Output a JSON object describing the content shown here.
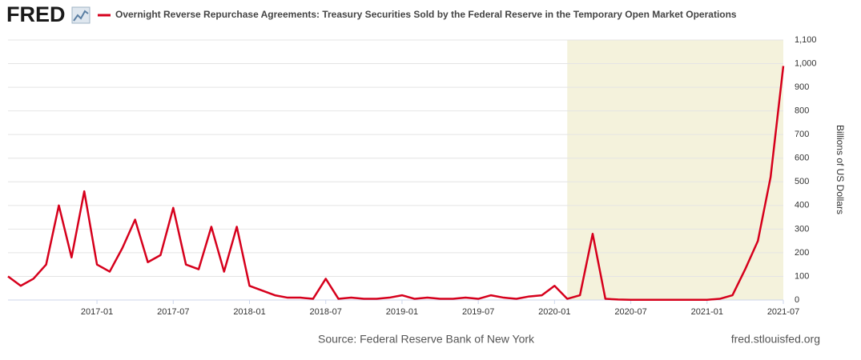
{
  "logo": "FRED",
  "chart_data": {
    "type": "line",
    "series": [
      {
        "name": "Overnight Reverse Repurchase Agreements: Treasury Securities Sold by the Federal Reserve in the Temporary Open Market Operations",
        "color": "#d6001c",
        "values": [
          100,
          60,
          90,
          150,
          400,
          180,
          460,
          150,
          120,
          220,
          340,
          160,
          190,
          390,
          150,
          130,
          310,
          120,
          310,
          60,
          40,
          20,
          10,
          10,
          5,
          90,
          5,
          10,
          5,
          5,
          10,
          20,
          5,
          10,
          5,
          5,
          10,
          5,
          20,
          10,
          5,
          15,
          20,
          60,
          5,
          20,
          280,
          5,
          2,
          1,
          1,
          1,
          1,
          1,
          1,
          1,
          5,
          20,
          130,
          250,
          520,
          990
        ]
      }
    ],
    "x": [
      "2016-06",
      "2016-07",
      "2016-08",
      "2016-09",
      "2016-10",
      "2016-11",
      "2016-12",
      "2017-01",
      "2017-02",
      "2017-03",
      "2017-04",
      "2017-05",
      "2017-06",
      "2017-07",
      "2017-08",
      "2017-09",
      "2017-10",
      "2017-11",
      "2017-12",
      "2018-01",
      "2018-02",
      "2018-03",
      "2018-04",
      "2018-05",
      "2018-06",
      "2018-07",
      "2018-08",
      "2018-09",
      "2018-10",
      "2018-11",
      "2018-12",
      "2019-01",
      "2019-02",
      "2019-03",
      "2019-04",
      "2019-05",
      "2019-06",
      "2019-07",
      "2019-08",
      "2019-09",
      "2019-10",
      "2019-11",
      "2019-12",
      "2020-01",
      "2020-02",
      "2020-03",
      "2020-04",
      "2020-05",
      "2020-06",
      "2020-07",
      "2020-08",
      "2020-09",
      "2020-10",
      "2020-11",
      "2020-12",
      "2021-01",
      "2021-02",
      "2021-03",
      "2021-04",
      "2021-05",
      "2021-06",
      "2021-07"
    ],
    "xlim": [
      "2016-06",
      "2021-07"
    ],
    "xticks": [
      "2017-01",
      "2017-07",
      "2018-01",
      "2018-07",
      "2019-01",
      "2019-07",
      "2020-01",
      "2020-07",
      "2021-01",
      "2021-07"
    ],
    "ylim": [
      0,
      1100
    ],
    "yticks": [
      0,
      100,
      200,
      300,
      400,
      500,
      600,
      700,
      800,
      900,
      {
        "value": 1000,
        "label": "1,000"
      },
      {
        "value": 1100,
        "label": "1,100"
      }
    ],
    "ylabel": "Billions of US Dollars",
    "grid": true,
    "recession_shading": {
      "start": "2020-02",
      "end": "2021-07",
      "color": "#f4f2dc"
    },
    "source": "Source: Federal Reserve Bank of New York",
    "site": "fred.stlouisfed.org"
  }
}
